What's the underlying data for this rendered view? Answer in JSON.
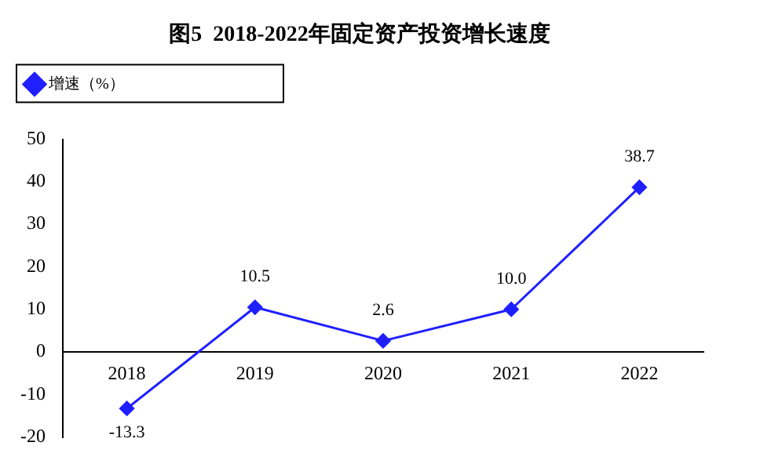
{
  "chart_data": {
    "type": "line",
    "title": "图5  2018-2022年固定资产投资增长速度",
    "categories": [
      "2018",
      "2019",
      "2020",
      "2021",
      "2022"
    ],
    "series": [
      {
        "name": "增速（%）",
        "color": "#1f1fff",
        "values": [
          -13.3,
          10.5,
          2.6,
          10.0,
          38.7
        ]
      }
    ],
    "value_labels": [
      "-13.3",
      "10.5",
      "2.6",
      "10.0",
      "38.7"
    ],
    "ylim": [
      -20,
      50
    ],
    "yticks": [
      -20,
      -10,
      0,
      10,
      20,
      30,
      40,
      50
    ],
    "grid": false,
    "legend": "top left",
    "marker": "diamond",
    "line_style": "solid"
  }
}
